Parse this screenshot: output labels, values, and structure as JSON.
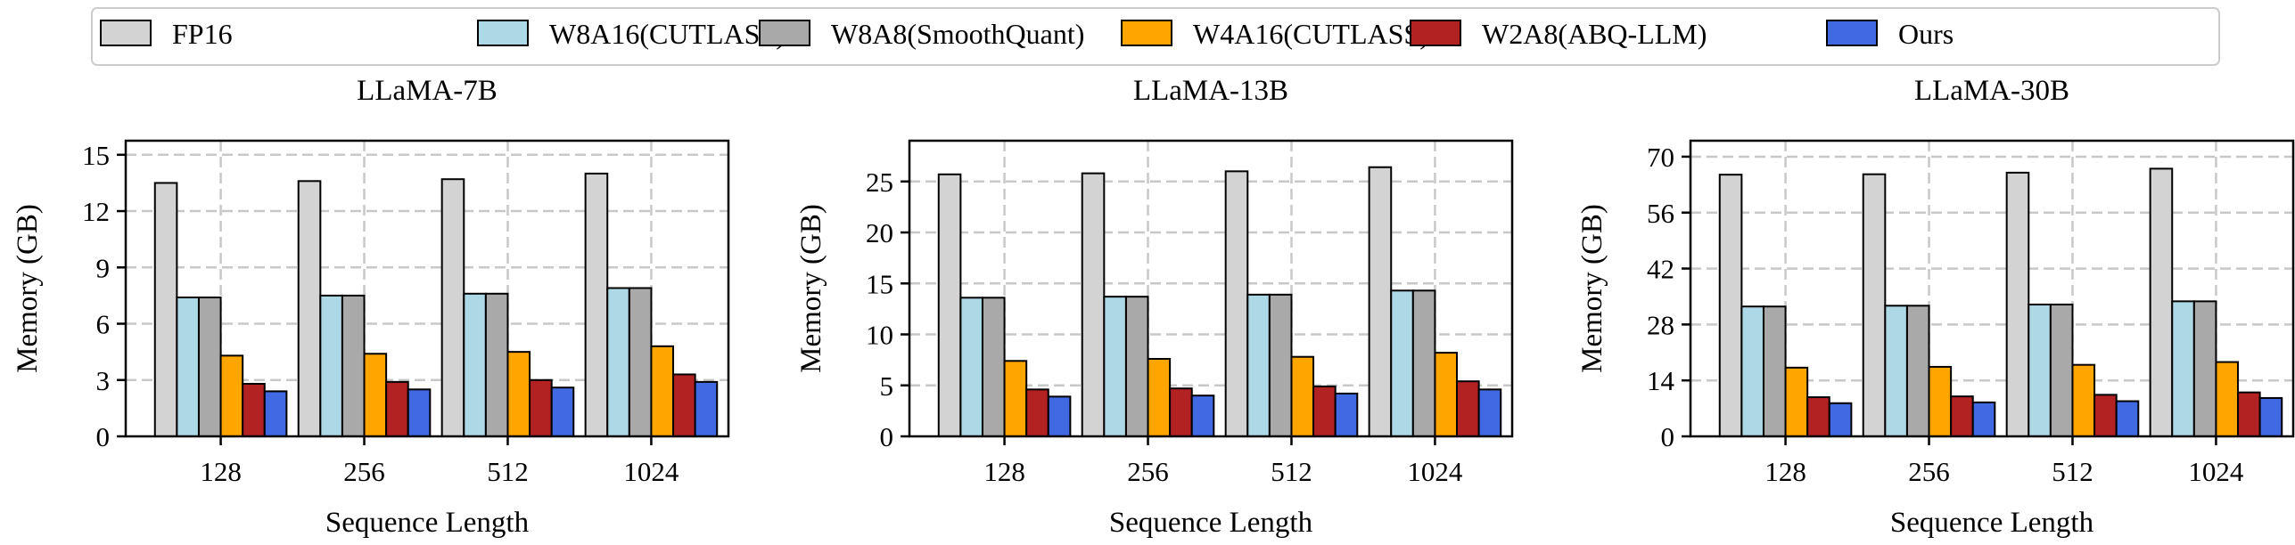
{
  "legend": {
    "placement": "top-center",
    "entries": [
      {
        "label": "FP16",
        "color": "#d3d3d3"
      },
      {
        "label": "W8A16(CUTLASS)",
        "color": "#add8e6"
      },
      {
        "label": "W8A8(SmoothQuant)",
        "color": "#a9a9a9"
      },
      {
        "label": "W4A16(CUTLASS)",
        "color": "#ffa500"
      },
      {
        "label": "W2A8(ABQ-LLM)",
        "color": "#b22222"
      },
      {
        "label": "Ours",
        "color": "#4169e1"
      }
    ]
  },
  "chart_data": [
    {
      "type": "bar",
      "title": "LLaMA-7B",
      "xlabel": "Sequence Length",
      "ylabel": "Memory (GB)",
      "categories": [
        "128",
        "256",
        "512",
        "1024"
      ],
      "ylim": [
        0,
        15.75
      ],
      "yticks": [
        0,
        3,
        6,
        9,
        12,
        15
      ],
      "grid": true,
      "series": [
        {
          "name": "FP16",
          "values": [
            13.5,
            13.6,
            13.7,
            14.0
          ]
        },
        {
          "name": "W8A16(CUTLASS)",
          "values": [
            7.4,
            7.5,
            7.6,
            7.9
          ]
        },
        {
          "name": "W8A8(SmoothQuant)",
          "values": [
            7.4,
            7.5,
            7.6,
            7.9
          ]
        },
        {
          "name": "W4A16(CUTLASS)",
          "values": [
            4.3,
            4.4,
            4.5,
            4.8
          ]
        },
        {
          "name": "W2A8(ABQ-LLM)",
          "values": [
            2.8,
            2.9,
            3.0,
            3.3
          ]
        },
        {
          "name": "Ours",
          "values": [
            2.4,
            2.5,
            2.6,
            2.9
          ]
        }
      ]
    },
    {
      "type": "bar",
      "title": "LLaMA-13B",
      "xlabel": "Sequence Length",
      "ylabel": "Memory (GB)",
      "categories": [
        "128",
        "256",
        "512",
        "1024"
      ],
      "ylim": [
        0,
        29
      ],
      "yticks": [
        0,
        5,
        10,
        15,
        20,
        25
      ],
      "grid": true,
      "series": [
        {
          "name": "FP16",
          "values": [
            25.7,
            25.8,
            26.0,
            26.4
          ]
        },
        {
          "name": "W8A16(CUTLASS)",
          "values": [
            13.6,
            13.7,
            13.9,
            14.3
          ]
        },
        {
          "name": "W8A8(SmoothQuant)",
          "values": [
            13.6,
            13.7,
            13.9,
            14.3
          ]
        },
        {
          "name": "W4A16(CUTLASS)",
          "values": [
            7.4,
            7.6,
            7.8,
            8.2
          ]
        },
        {
          "name": "W2A8(ABQ-LLM)",
          "values": [
            4.6,
            4.7,
            4.9,
            5.4
          ]
        },
        {
          "name": "Ours",
          "values": [
            3.9,
            4.0,
            4.2,
            4.6
          ]
        }
      ]
    },
    {
      "type": "bar",
      "title": "LLaMA-30B",
      "xlabel": "Sequence Length",
      "ylabel": "Memory (GB)",
      "categories": [
        "128",
        "256",
        "512",
        "1024"
      ],
      "ylim": [
        0,
        74
      ],
      "yticks": [
        0,
        14,
        28,
        42,
        56,
        70
      ],
      "grid": true,
      "series": [
        {
          "name": "FP16",
          "values": [
            65.5,
            65.6,
            66.0,
            67.0
          ]
        },
        {
          "name": "W8A16(CUTLASS)",
          "values": [
            32.5,
            32.7,
            33.0,
            33.8
          ]
        },
        {
          "name": "W8A8(SmoothQuant)",
          "values": [
            32.5,
            32.7,
            33.0,
            33.8
          ]
        },
        {
          "name": "W4A16(CUTLASS)",
          "values": [
            17.2,
            17.4,
            17.9,
            18.6
          ]
        },
        {
          "name": "W2A8(ABQ-LLM)",
          "values": [
            9.8,
            10.0,
            10.4,
            11.0
          ]
        },
        {
          "name": "Ours",
          "values": [
            8.3,
            8.5,
            8.8,
            9.6
          ]
        }
      ]
    }
  ]
}
